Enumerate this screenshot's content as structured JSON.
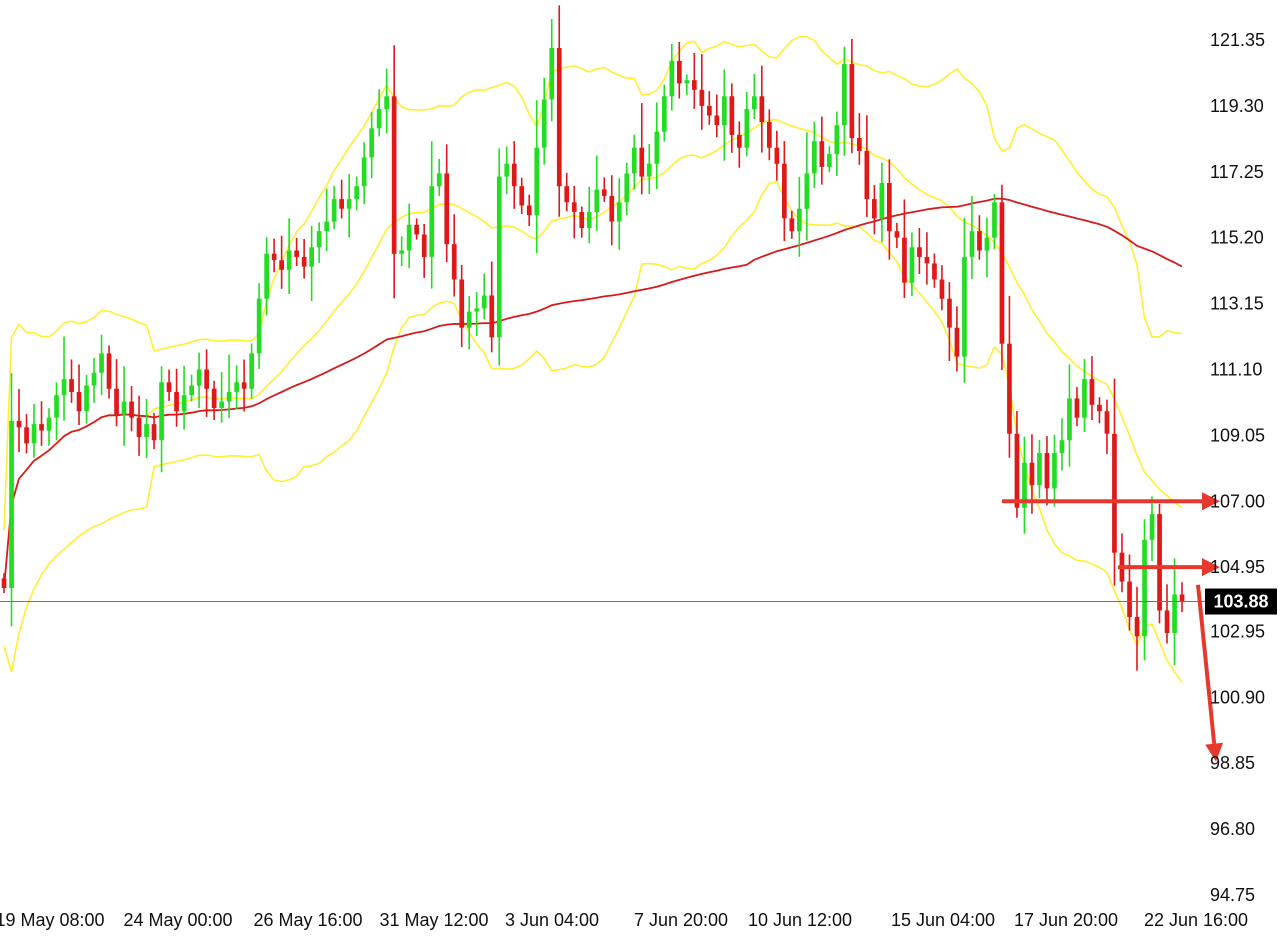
{
  "chart_data": {
    "type": "candlestick",
    "title": "",
    "xlabel": "",
    "ylabel": "",
    "ylim": [
      94.75,
      121.35
    ],
    "y_ticks": [
      "121.35",
      "119.30",
      "117.25",
      "115.20",
      "113.15",
      "111.10",
      "109.05",
      "107.00",
      "104.95",
      "102.95",
      "100.90",
      "98.85",
      "96.80",
      "94.75"
    ],
    "x_ticks": [
      "19 May 08:00",
      "24 May 00:00",
      "26 May 16:00",
      "31 May 12:00",
      "3 Jun 04:00",
      "7 Jun 20:00",
      "10 Jun 12:00",
      "15 Jun 04:00",
      "17 Jun 20:00",
      "22 Jun 16:00"
    ],
    "current_price": {
      "value": 103.88,
      "label": "103.88"
    },
    "grid": false,
    "legend": "none",
    "colors": {
      "up": "#22dd22",
      "down": "#e01818",
      "bands": "#ffee33",
      "moving_average": "#d41c1c",
      "price_line": "#5a7894",
      "price_label_bg": "#000000",
      "arrows": "#e8382e"
    },
    "annotations": [
      {
        "type": "horizontal-arrow",
        "level": 107.0
      },
      {
        "type": "horizontal-arrow",
        "level": 104.95
      },
      {
        "type": "down-arrow",
        "from": 104.4,
        "to": 98.9
      }
    ],
    "close": [
      104.3,
      109.5,
      109.3,
      108.8,
      109.4,
      109.2,
      109.6,
      110.3,
      110.8,
      110.4,
      109.8,
      110.6,
      111.0,
      111.6,
      110.5,
      109.7,
      110.1,
      109.6,
      109.0,
      109.4,
      108.9,
      110.7,
      110.4,
      109.8,
      110.3,
      110.6,
      111.1,
      110.5,
      109.9,
      110.1,
      110.4,
      110.7,
      110.5,
      111.6,
      113.3,
      114.7,
      114.5,
      114.2,
      114.8,
      114.6,
      114.3,
      114.9,
      115.4,
      115.7,
      116.4,
      116.1,
      116.4,
      116.8,
      117.7,
      118.6,
      119.2,
      119.6,
      114.7,
      114.8,
      115.6,
      115.3,
      114.6,
      116.8,
      117.2,
      115.0,
      113.9,
      112.4,
      112.9,
      113.0,
      113.4,
      112.1,
      117.1,
      117.5,
      116.8,
      116.2,
      115.9,
      118.0,
      119.5,
      121.1,
      116.8,
      116.3,
      116.0,
      115.5,
      116.0,
      116.7,
      116.5,
      115.7,
      116.3,
      117.2,
      118.0,
      117.1,
      117.5,
      118.5,
      119.6,
      120.7,
      120.0,
      120.1,
      119.8,
      119.3,
      119.0,
      118.7,
      119.6,
      118.4,
      118.0,
      119.2,
      119.6,
      118.8,
      118.0,
      117.5,
      115.8,
      115.4,
      116.1,
      117.2,
      118.2,
      117.4,
      117.8,
      118.7,
      120.6,
      118.3,
      117.9,
      116.4,
      115.8,
      116.9,
      115.4,
      115.2,
      113.8,
      114.9,
      114.6,
      114.4,
      113.9,
      113.3,
      112.4,
      111.5,
      114.6,
      115.4,
      114.8,
      115.2,
      116.3,
      111.9,
      109.1,
      106.8,
      108.2,
      107.5,
      108.5,
      107.4,
      108.5,
      108.9,
      110.2,
      109.6,
      110.8,
      110.0,
      109.8,
      109.1,
      105.4,
      104.5,
      103.4,
      102.8,
      105.8,
      106.6,
      103.6,
      102.9,
      104.1,
      103.88
    ]
  }
}
